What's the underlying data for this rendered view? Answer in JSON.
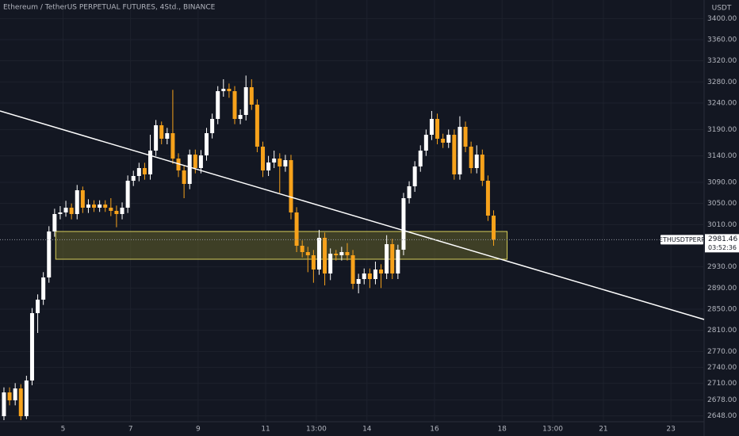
{
  "chart_data": {
    "type": "candlestick",
    "title": "Ethereum / TetherUS PERPETUAL FUTURES, 4Std., BINANCE",
    "symbol": "ETHUSDTPERP",
    "currency": "USDT",
    "last_price": 2981.46,
    "countdown": "03:52:36",
    "up_color": "#ffffff",
    "down_color": "#f7a21b",
    "grid": true,
    "x": [
      0,
      1,
      2,
      3,
      4,
      5,
      6,
      7,
      8,
      9,
      10,
      11,
      12,
      13,
      14,
      15,
      16,
      17,
      18,
      19,
      20,
      21,
      22,
      23,
      24,
      25,
      26,
      27,
      28,
      29,
      30,
      31,
      32,
      33,
      34,
      35,
      36,
      37,
      38,
      39,
      40,
      41,
      42,
      43,
      44,
      45,
      46,
      47,
      48,
      49,
      50,
      51,
      52,
      53,
      54,
      55,
      56,
      57,
      58,
      59,
      60,
      61,
      62,
      63,
      64,
      65,
      66,
      67,
      68,
      69,
      70,
      71,
      72,
      73,
      74,
      75,
      76,
      77,
      78,
      79,
      80,
      81,
      82,
      83,
      84,
      85,
      86,
      87
    ],
    "open": [
      2647.5,
      2692.5,
      2677.5,
      2700,
      2647.5,
      2715,
      2842.5,
      2868,
      2910,
      2997,
      3030,
      3033,
      3042,
      3030,
      3075,
      3042,
      3048,
      3042,
      3048,
      3042,
      3036,
      3030,
      3042,
      3093,
      3102,
      3117,
      3105,
      3150,
      3198,
      3172.5,
      3183,
      3135,
      3112.5,
      3087,
      3142.5,
      3117,
      3141,
      3183,
      3210,
      3262.5,
      3267,
      3262.5,
      3210,
      3217.5,
      3270,
      3237,
      3157.5,
      3112.5,
      3127.5,
      3135,
      3120,
      3132,
      3033,
      2970,
      2958,
      2952,
      2925,
      2985,
      2917.5,
      2955,
      2952,
      2958,
      2952,
      2898,
      2907,
      2917.5,
      2907,
      2925,
      2917.5,
      2973,
      2917.5,
      2962.5,
      3060,
      3082.5,
      3120,
      3150,
      3180,
      3210,
      3172.5,
      3165,
      3180,
      3105,
      3195,
      3157.5,
      3117,
      3142.5,
      3093,
      3027
    ],
    "high": [
      2702,
      2702,
      2710,
      2708,
      2724,
      2852,
      2878,
      2920,
      3007,
      3040,
      3045,
      3055,
      3050,
      3085,
      3082,
      3058,
      3056,
      3056,
      3056,
      3060,
      3046,
      3052,
      3103,
      3112,
      3127,
      3127,
      3180,
      3208,
      3205,
      3193,
      3265,
      3145,
      3122,
      3152,
      3152,
      3151,
      3193,
      3220,
      3272,
      3285,
      3277,
      3272,
      3228,
      3292,
      3285,
      3247,
      3167,
      3140,
      3150,
      3145,
      3142,
      3142,
      3043,
      2980,
      2968,
      2962,
      3000,
      2995,
      2965,
      2962,
      2968,
      2975,
      2962,
      2917,
      2927,
      2927,
      2940,
      2935,
      2990,
      2983,
      2972,
      3070,
      3092,
      3130,
      3160,
      3190,
      3225,
      3220,
      3182,
      3190,
      3190,
      3215,
      3205,
      3167,
      3160,
      3152,
      3103,
      3037
    ],
    "low": [
      2640,
      2668,
      2668,
      2640,
      2642,
      2706,
      2805,
      2858,
      2900,
      2987,
      3020,
      3025,
      3020,
      3020,
      3032,
      3032,
      3034,
      3034,
      3034,
      3026,
      3005,
      3020,
      3032,
      3083,
      3092,
      3095,
      3095,
      3140,
      3162,
      3162,
      3125,
      3100,
      3060,
      3077,
      3107,
      3107,
      3131,
      3173,
      3200,
      3252,
      3250,
      3200,
      3200,
      3207,
      3227,
      3147,
      3100,
      3102,
      3117,
      3070,
      3110,
      3020,
      2958,
      2948,
      2920,
      2900,
      2915,
      2895,
      2905,
      2942,
      2942,
      2942,
      2888,
      2880,
      2897,
      2890,
      2897,
      2890,
      2907,
      2907,
      2907,
      2952,
      3050,
      3072,
      3110,
      3140,
      3170,
      3162,
      3155,
      3155,
      3095,
      3095,
      3147,
      3107,
      3107,
      3083,
      3017,
      2970
    ],
    "close": [
      2692.5,
      2677.5,
      2700,
      2647.5,
      2715,
      2842.5,
      2868,
      2910,
      2997,
      3030,
      3033,
      3042,
      3030,
      3075,
      3042,
      3048,
      3042,
      3048,
      3042,
      3036,
      3030,
      3042,
      3093,
      3102,
      3117,
      3105,
      3150,
      3198,
      3172.5,
      3183,
      3135,
      3112.5,
      3087,
      3142.5,
      3117,
      3141,
      3183,
      3210,
      3262.5,
      3267,
      3262.5,
      3210,
      3217.5,
      3270,
      3237,
      3157.5,
      3112.5,
      3127.5,
      3135,
      3120,
      3132,
      3033,
      2970,
      2958,
      2952,
      2925,
      2985,
      2917.5,
      2955,
      2952,
      2958,
      2952,
      2898,
      2907,
      2917.5,
      2907,
      2925,
      2917.5,
      2973,
      2917.5,
      2962.5,
      3060,
      3082.5,
      3120,
      3150,
      3180,
      3210,
      3172.5,
      3165,
      3180,
      3105,
      3195,
      3157.5,
      3117,
      3142.5,
      3093,
      3027,
      2981.46
    ],
    "xlim": [
      -0.7,
      124.4
    ],
    "ylim": [
      2640,
      3420
    ],
    "xticks": [
      {
        "value": 10.5,
        "label": "5"
      },
      {
        "value": 22.5,
        "label": "7"
      },
      {
        "value": 34.5,
        "label": "9"
      },
      {
        "value": 46.5,
        "label": "11"
      },
      {
        "value": 55.5,
        "label": "13:00"
      },
      {
        "value": 64.5,
        "label": "14"
      },
      {
        "value": 76.5,
        "label": "16"
      },
      {
        "value": 88.5,
        "label": "18"
      },
      {
        "value": 97.5,
        "label": "13:00"
      },
      {
        "value": 106.5,
        "label": "21"
      },
      {
        "value": 118.5,
        "label": "23"
      }
    ],
    "yticks": [
      {
        "value": 3400,
        "label": "3400.00"
      },
      {
        "value": 3360,
        "label": "3360.00"
      },
      {
        "value": 3320,
        "label": "3320.00"
      },
      {
        "value": 3280,
        "label": "3280.00"
      },
      {
        "value": 3240,
        "label": "3240.00"
      },
      {
        "value": 3190,
        "label": "3190.00"
      },
      {
        "value": 3140,
        "label": "3140.00"
      },
      {
        "value": 3090,
        "label": "3090.00"
      },
      {
        "value": 3050,
        "label": "3050.00"
      },
      {
        "value": 3010,
        "label": "3010.00"
      },
      {
        "value": 2930,
        "label": "2930.00"
      },
      {
        "value": 2890,
        "label": "2890.00"
      },
      {
        "value": 2850,
        "label": "2850.00"
      },
      {
        "value": 2810,
        "label": "2810.00"
      },
      {
        "value": 2770,
        "label": "2770.00"
      },
      {
        "value": 2740,
        "label": "2740.00"
      },
      {
        "value": 2710,
        "label": "2710.00"
      },
      {
        "value": 2678,
        "label": "2678.00"
      },
      {
        "value": 2648,
        "label": "2648.00"
      }
    ],
    "trendline": {
      "color": "#ffffff",
      "x": [
        -0.7,
        124.4
      ],
      "y": [
        3225,
        2830.5
      ]
    },
    "zone": {
      "fill": "#5c5a2a",
      "stroke": "#d8cf5a",
      "x": [
        9.2,
        89.4
      ],
      "y": [
        2944.5,
        2997
      ]
    }
  }
}
